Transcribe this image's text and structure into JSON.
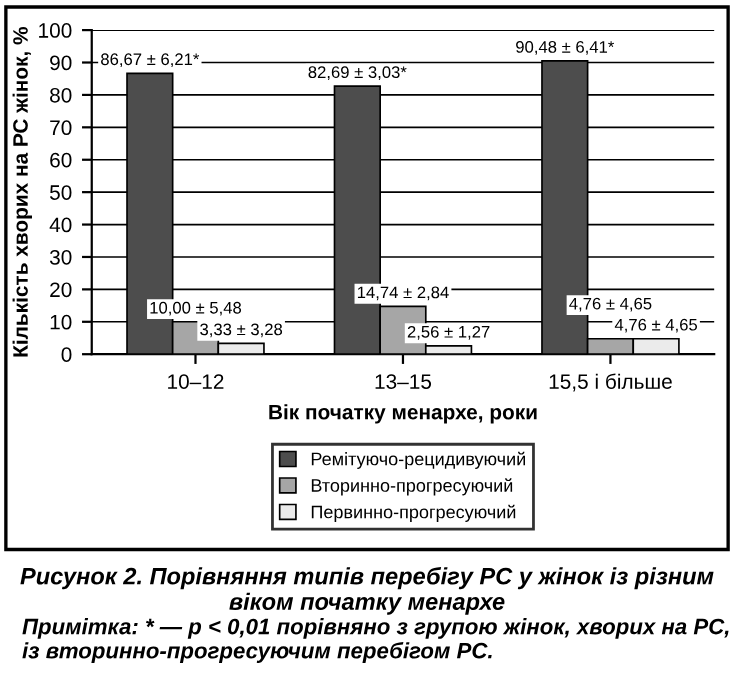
{
  "chart_data": {
    "type": "bar",
    "xlabel": "Вік початку менархе, роки",
    "ylabel": "Кількість хворих на РС жінок, %",
    "categories": [
      "10–12",
      "13–15",
      "15,5 і більше"
    ],
    "series": [
      {
        "name": "Ремітуючо-рецидивуючий",
        "color": "#4d4d4d",
        "values": [
          86.67,
          82.69,
          90.48
        ],
        "value_labels": [
          "86,67 ± 6,21*",
          "82,69 ± 3,03*",
          "90,48 ± 6,41*"
        ]
      },
      {
        "name": "Вторинно-прогресуючий",
        "color": "#a6a6a6",
        "values": [
          10.0,
          14.74,
          4.76
        ],
        "value_labels": [
          "10,00 ± 5,48",
          "14,74 ± 2,84",
          "4,76 ± 4,65"
        ]
      },
      {
        "name": "Первинно-прогресуючий",
        "color": "#ebebeb",
        "values": [
          3.33,
          2.56,
          4.76
        ],
        "value_labels": [
          "3,33 ± 3,28",
          "2,56 ± 1,27",
          "4,76 ± 4,65"
        ]
      }
    ],
    "ylim": [
      0,
      100
    ],
    "yticks": [
      0,
      10,
      20,
      30,
      40,
      50,
      60,
      70,
      80,
      90,
      100
    ],
    "grid": "y",
    "legend": "bottom",
    "annotations": [
      "Рисунок 2. Порівняння типів перебігу РС у жінок із різним віком початку менархе",
      "Примітка: * — p < 0,01 порівняно з групою жінок, хворих на РС, із вторинно-прогресуючим перебігом РС."
    ]
  }
}
